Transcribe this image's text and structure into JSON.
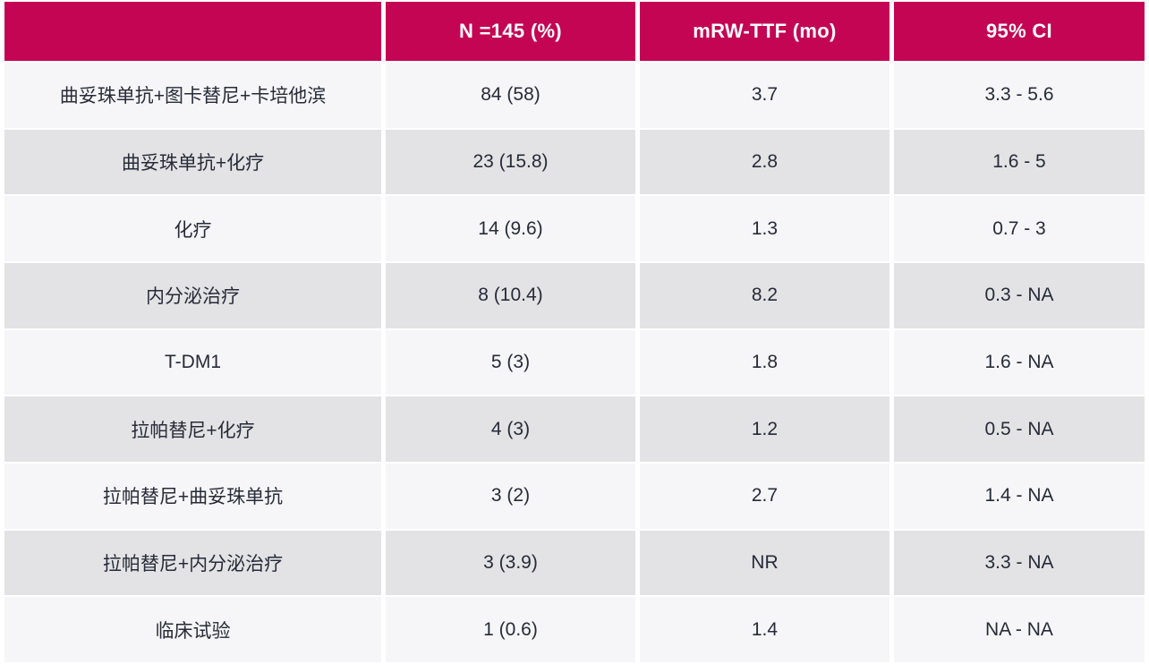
{
  "colors": {
    "accent": "#c40554",
    "row-light": "#f6f6f8",
    "row-dark": "#e3e3e5",
    "text": "#262b38",
    "header-text": "#ffffff"
  },
  "table": {
    "columns": [
      "",
      "N =145 (%)",
      "mRW-TTF (mo)",
      "95% CI"
    ],
    "rows": [
      [
        "曲妥珠单抗+图卡替尼+卡培他滨",
        "84 (58)",
        "3.7",
        "3.3 - 5.6"
      ],
      [
        "曲妥珠单抗+化疗",
        "23 (15.8)",
        "2.8",
        "1.6 - 5"
      ],
      [
        "化疗",
        "14 (9.6)",
        "1.3",
        "0.7 - 3"
      ],
      [
        "内分泌治疗",
        "8 (10.4)",
        "8.2",
        "0.3 - NA"
      ],
      [
        "T-DM1",
        "5 (3)",
        "1.8",
        "1.6 - NA"
      ],
      [
        "拉帕替尼+化疗",
        "4 (3)",
        "1.2",
        "0.5 - NA"
      ],
      [
        "拉帕替尼+曲妥珠单抗",
        "3 (2)",
        "2.7",
        "1.4 - NA"
      ],
      [
        "拉帕替尼+内分泌治疗",
        "3 (3.9)",
        "NR",
        "3.3 - NA"
      ],
      [
        "临床试验",
        "1 (0.6)",
        "1.4",
        "NA - NA"
      ]
    ]
  },
  "chart_data": {
    "type": "table",
    "columns": [
      "",
      "N =145 (%)",
      "mRW-TTF (mo)",
      "95% CI"
    ],
    "rows": [
      {
        "treatment": "曲妥珠单抗+图卡替尼+卡培他滨",
        "n_pct": "84 (58)",
        "mrw_ttf_mo": "3.7",
        "ci_95": "3.3 - 5.6"
      },
      {
        "treatment": "曲妥珠单抗+化疗",
        "n_pct": "23 (15.8)",
        "mrw_ttf_mo": "2.8",
        "ci_95": "1.6 - 5"
      },
      {
        "treatment": "化疗",
        "n_pct": "14 (9.6)",
        "mrw_ttf_mo": "1.3",
        "ci_95": "0.7 - 3"
      },
      {
        "treatment": "内分泌治疗",
        "n_pct": "8 (10.4)",
        "mrw_ttf_mo": "8.2",
        "ci_95": "0.3 - NA"
      },
      {
        "treatment": "T-DM1",
        "n_pct": "5 (3)",
        "mrw_ttf_mo": "1.8",
        "ci_95": "1.6 - NA"
      },
      {
        "treatment": "拉帕替尼+化疗",
        "n_pct": "4 (3)",
        "mrw_ttf_mo": "1.2",
        "ci_95": "0.5 - NA"
      },
      {
        "treatment": "拉帕替尼+曲妥珠单抗",
        "n_pct": "3 (2)",
        "mrw_ttf_mo": "2.7",
        "ci_95": "1.4 - NA"
      },
      {
        "treatment": "拉帕替尼+内分泌治疗",
        "n_pct": "3 (3.9)",
        "mrw_ttf_mo": "NR",
        "ci_95": "3.3 - NA"
      },
      {
        "treatment": "临床试验",
        "n_pct": "1 (0.6)",
        "mrw_ttf_mo": "1.4",
        "ci_95": "NA - NA"
      }
    ],
    "layout": {
      "header_background": "#c40554",
      "zebra_striping": true,
      "total_n": 145
    }
  }
}
